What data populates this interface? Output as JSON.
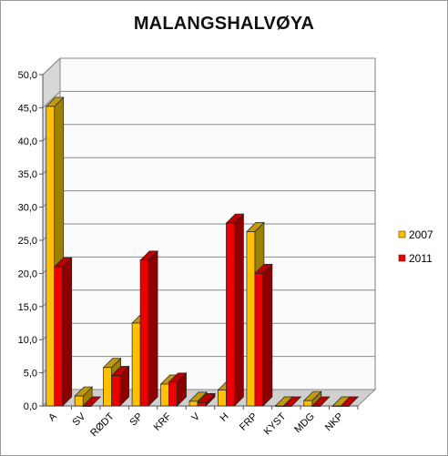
{
  "chart_data": {
    "type": "bar",
    "title": "MALANGSHALVØYA",
    "categories": [
      "A",
      "SV",
      "RØDT",
      "SP",
      "KRF",
      "V",
      "H",
      "FRP",
      "KYST",
      "MDG",
      "NKP"
    ],
    "series": [
      {
        "name": "2007",
        "values": [
          45.2,
          1.5,
          5.8,
          12.5,
          3.3,
          0.7,
          2.4,
          26.3,
          0.0,
          0.8,
          0.0
        ],
        "color": "#FFC000",
        "side_color": "#A08000",
        "top_color": "#C09A10"
      },
      {
        "name": "2011",
        "values": [
          21.0,
          0.0,
          4.6,
          22.0,
          3.6,
          0.5,
          27.6,
          20.0,
          0.0,
          0.0,
          0.0
        ],
        "color": "#EE0000",
        "side_color": "#8E0000",
        "top_color": "#C00000"
      }
    ],
    "ylim": [
      0,
      50
    ],
    "yticks": [
      "0,0",
      "5,0",
      "10,0",
      "15,0",
      "20,0",
      "25,0",
      "30,0",
      "35,0",
      "40,0",
      "45,0",
      "50,0"
    ],
    "grid": true,
    "legend": "right"
  }
}
